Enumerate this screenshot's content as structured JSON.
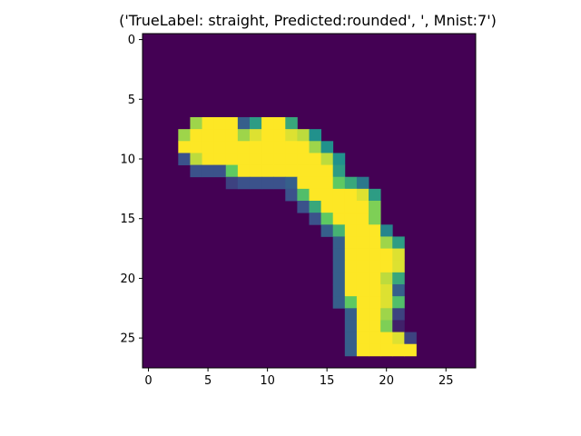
{
  "chart_data": {
    "type": "heatmap",
    "title": "('TrueLabel: straight, Predicted:rounded', ', Mnist:7')",
    "xlabel": "",
    "ylabel": "",
    "grid": false,
    "rows": 28,
    "cols": 28,
    "x_ticks": [
      "0",
      "5",
      "10",
      "15",
      "20",
      "25"
    ],
    "y_ticks": [
      "0",
      "5",
      "10",
      "15",
      "20",
      "25"
    ],
    "colormap": "viridis",
    "value_range": [
      0,
      1
    ],
    "pixels": [
      {
        "row": 7,
        "values": {
          "4": 0.85,
          "5": 1,
          "6": 1,
          "7": 1,
          "8": 0.3,
          "9": 0.55,
          "10": 1,
          "11": 1,
          "12": 0.6
        }
      },
      {
        "row": 8,
        "values": {
          "3": 0.85,
          "4": 1,
          "5": 1,
          "6": 1,
          "7": 1,
          "8": 0.85,
          "9": 0.95,
          "10": 1,
          "11": 1,
          "12": 0.95,
          "13": 0.9,
          "14": 0.5
        }
      },
      {
        "row": 9,
        "values": {
          "3": 1,
          "4": 1,
          "5": 1,
          "6": 1,
          "7": 1,
          "8": 1,
          "9": 1,
          "10": 1,
          "11": 1,
          "12": 1,
          "13": 1,
          "14": 0.85,
          "15": 0.5
        }
      },
      {
        "row": 10,
        "values": {
          "3": 0.25,
          "4": 0.9,
          "5": 1,
          "6": 1,
          "7": 1,
          "8": 1,
          "9": 1,
          "10": 1,
          "11": 1,
          "12": 1,
          "13": 1,
          "14": 1,
          "15": 0.9,
          "16": 0.5
        }
      },
      {
        "row": 11,
        "values": {
          "4": 0.25,
          "5": 0.25,
          "6": 0.25,
          "7": 0.75,
          "8": 1,
          "9": 1,
          "10": 1,
          "11": 1,
          "12": 1,
          "13": 1,
          "14": 1,
          "15": 1,
          "16": 0.55
        }
      },
      {
        "row": 12,
        "values": {
          "7": 0.2,
          "8": 0.25,
          "9": 0.25,
          "10": 0.25,
          "11": 0.25,
          "12": 0.3,
          "13": 1,
          "14": 1,
          "15": 1,
          "16": 0.75,
          "17": 0.6,
          "18": 0.4
        }
      },
      {
        "row": 13,
        "values": {
          "12": 0.25,
          "13": 0.7,
          "14": 1,
          "15": 1,
          "16": 1,
          "17": 1,
          "18": 0.95,
          "19": 0.55
        }
      },
      {
        "row": 14,
        "values": {
          "13": 0.25,
          "14": 0.6,
          "15": 1,
          "16": 1,
          "17": 1,
          "18": 1,
          "19": 0.8
        }
      },
      {
        "row": 15,
        "values": {
          "14": 0.25,
          "15": 0.75,
          "16": 1,
          "17": 1,
          "18": 1,
          "19": 0.8
        }
      },
      {
        "row": 16,
        "values": {
          "15": 0.3,
          "16": 0.65,
          "17": 1,
          "18": 1,
          "19": 1,
          "20": 0.45
        }
      },
      {
        "row": 17,
        "values": {
          "16": 0.3,
          "17": 1,
          "18": 1,
          "19": 1,
          "20": 0.85,
          "21": 0.55
        }
      },
      {
        "row": 18,
        "values": {
          "16": 0.3,
          "17": 1,
          "18": 1,
          "19": 1,
          "20": 1,
          "21": 0.95
        }
      },
      {
        "row": 19,
        "values": {
          "16": 0.3,
          "17": 1,
          "18": 1,
          "19": 1,
          "20": 1,
          "21": 0.95
        }
      },
      {
        "row": 20,
        "values": {
          "16": 0.3,
          "17": 1,
          "18": 1,
          "19": 1,
          "20": 0.9,
          "21": 0.6
        }
      },
      {
        "row": 21,
        "values": {
          "16": 0.3,
          "17": 1,
          "18": 1,
          "19": 1,
          "20": 0.95,
          "21": 0.3
        }
      },
      {
        "row": 22,
        "values": {
          "16": 0.3,
          "17": 0.75,
          "18": 1,
          "19": 1,
          "20": 0.95,
          "21": 0.7
        }
      },
      {
        "row": 23,
        "values": {
          "17": 0.3,
          "18": 1,
          "19": 1,
          "20": 0.85,
          "21": 0.2
        }
      },
      {
        "row": 24,
        "values": {
          "17": 0.3,
          "18": 1,
          "19": 1,
          "20": 0.8,
          "21": 0.1
        }
      },
      {
        "row": 25,
        "values": {
          "17": 0.3,
          "18": 1,
          "19": 1,
          "20": 1,
          "21": 0.95,
          "22": 0.2
        }
      },
      {
        "row": 26,
        "values": {
          "17": 0.3,
          "18": 1,
          "19": 1,
          "20": 1,
          "21": 1,
          "22": 1
        }
      }
    ]
  }
}
